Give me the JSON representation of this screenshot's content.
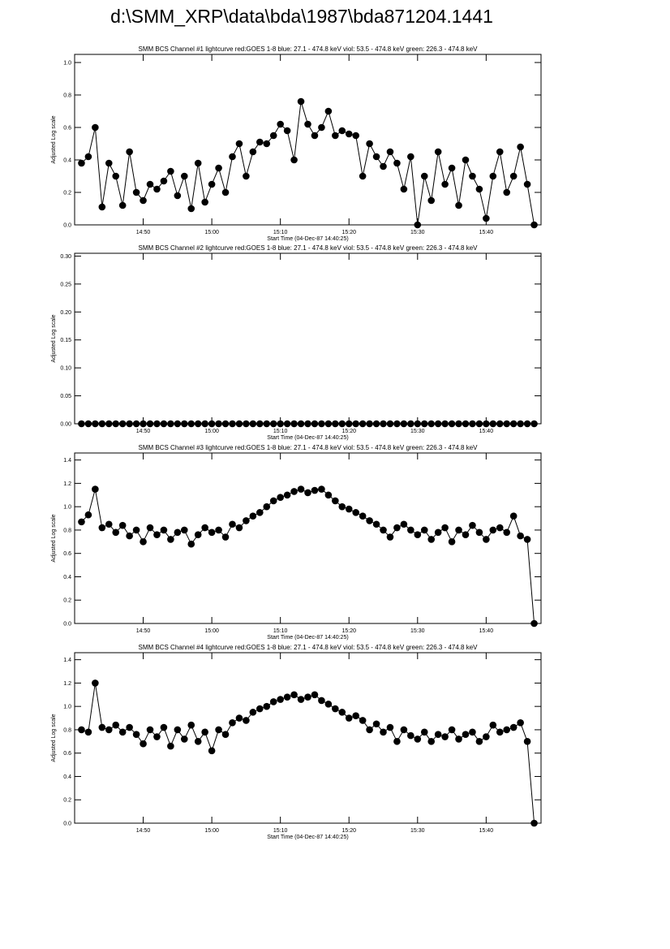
{
  "title": "d:\\SMM_XRP\\data\\bda\\1987\\bda871204.1441",
  "chart_data": [
    {
      "type": "line",
      "title": "SMM BCS Channel #1 lightcurve  red:GOES 1-8  blue: 27.1 - 474.8 keV  viol: 53.5 - 474.8 keV  green: 226.3 - 474.8 keV",
      "y_label": "Adjusted Log scale",
      "x_label": "Start Time (04-Dec-87 14:40:25)",
      "color": "#000000",
      "xlim": [
        "14:40",
        "15:48"
      ],
      "xticks": [
        "14:50",
        "15:00",
        "15:10",
        "15:20",
        "15:30",
        "15:40"
      ],
      "ylim": [
        0,
        1.05
      ],
      "yticks": [
        {
          "value": 0,
          "label": "0.0"
        },
        0.2,
        0.4,
        0.6,
        0.8,
        {
          "value": 1,
          "label": "1.0"
        }
      ],
      "x": [
        "14:41",
        "14:42",
        "14:43",
        "14:44",
        "14:45",
        "14:46",
        "14:47",
        "14:48",
        "14:49",
        "14:50",
        "14:51",
        "14:52",
        "14:53",
        "14:54",
        "14:55",
        "14:56",
        "14:57",
        "14:58",
        "14:59",
        "15:00",
        "15:01",
        "15:02",
        "15:03",
        "15:04",
        "15:05",
        "15:06",
        "15:07",
        "15:08",
        "15:09",
        "15:10",
        "15:11",
        "15:12",
        "15:13",
        "15:14",
        "15:15",
        "15:16",
        "15:17",
        "15:18",
        "15:19",
        "15:20",
        "15:21",
        "15:22",
        "15:23",
        "15:24",
        "15:25",
        "15:26",
        "15:27",
        "15:28",
        "15:29",
        "15:30",
        "15:31",
        "15:32",
        "15:33",
        "15:34",
        "15:35",
        "15:36",
        "15:37",
        "15:38",
        "15:39",
        "15:40",
        "15:41",
        "15:42",
        "15:43",
        "15:44",
        "15:45",
        "15:46",
        "15:47"
      ],
      "values": [
        0.38,
        0.42,
        0.6,
        0.11,
        0.38,
        0.3,
        0.12,
        0.45,
        0.2,
        0.15,
        0.25,
        0.22,
        0.27,
        0.33,
        0.18,
        0.3,
        0.1,
        0.38,
        0.14,
        0.25,
        0.35,
        0.2,
        0.42,
        0.5,
        0.3,
        0.45,
        0.51,
        0.5,
        0.55,
        0.62,
        0.58,
        0.4,
        0.76,
        0.62,
        0.55,
        0.6,
        0.7,
        0.55,
        0.58,
        0.56,
        0.55,
        0.3,
        0.5,
        0.42,
        0.36,
        0.45,
        0.38,
        0.22,
        0.42,
        0,
        0.3,
        0.15,
        0.45,
        0.25,
        0.35,
        0.12,
        0.4,
        0.3,
        0.22,
        0.04,
        0.3,
        0.45,
        0.2,
        0.3,
        0.48,
        0.25,
        0
      ]
    },
    {
      "type": "line",
      "title": "SMM BCS Channel #2 lightcurve  red:GOES 1-8  blue: 27.1 - 474.8 keV  viol: 53.5 - 474.8 keV  green: 226.3 - 474.8 keV",
      "y_label": "Adjusted Log scale",
      "x_label": "Start Time (04-Dec-87 14:40:25)",
      "color": "#000000",
      "xlim": [
        "14:40",
        "15:48"
      ],
      "xticks": [
        "14:50",
        "15:00",
        "15:10",
        "15:20",
        "15:30",
        "15:40"
      ],
      "ylim": [
        0,
        0.305
      ],
      "yticks": [
        {
          "value": 0,
          "label": "0.00"
        },
        0.05,
        {
          "value": 0.1,
          "label": "0.10"
        },
        0.15,
        {
          "value": 0.2,
          "label": "0.20"
        },
        0.25,
        {
          "value": 0.3,
          "label": "0.30"
        }
      ],
      "x": [
        "14:41",
        "14:42",
        "14:43",
        "14:44",
        "14:45",
        "14:46",
        "14:47",
        "14:48",
        "14:49",
        "14:50",
        "14:51",
        "14:52",
        "14:53",
        "14:54",
        "14:55",
        "14:56",
        "14:57",
        "14:58",
        "14:59",
        "15:00",
        "15:01",
        "15:02",
        "15:03",
        "15:04",
        "15:05",
        "15:06",
        "15:07",
        "15:08",
        "15:09",
        "15:10",
        "15:11",
        "15:12",
        "15:13",
        "15:14",
        "15:15",
        "15:16",
        "15:17",
        "15:18",
        "15:19",
        "15:20",
        "15:21",
        "15:22",
        "15:23",
        "15:24",
        "15:25",
        "15:26",
        "15:27",
        "15:28",
        "15:29",
        "15:30",
        "15:31",
        "15:32",
        "15:33",
        "15:34",
        "15:35",
        "15:36",
        "15:37",
        "15:38",
        "15:39",
        "15:40",
        "15:41",
        "15:42",
        "15:43",
        "15:44",
        "15:45",
        "15:46",
        "15:47"
      ],
      "values": [
        0,
        0,
        0,
        0,
        0,
        0,
        0,
        0,
        0,
        0,
        0,
        0,
        0,
        0,
        0,
        0,
        0,
        0,
        0,
        0,
        0,
        0,
        0,
        0,
        0,
        0,
        0,
        0,
        0,
        0,
        0,
        0,
        0,
        0,
        0,
        0,
        0,
        0,
        0,
        0,
        0,
        0,
        0,
        0,
        0,
        0,
        0,
        0,
        0,
        0,
        0,
        0,
        0,
        0,
        0,
        0,
        0,
        0,
        0,
        0,
        0,
        0,
        0,
        0,
        0,
        0,
        0
      ]
    },
    {
      "type": "line",
      "title": "SMM BCS Channel #3 lightcurve  red:GOES 1-8  blue: 27.1 - 474.8 keV  viol: 53.5 - 474.8 keV  green: 226.3 - 474.8 keV",
      "y_label": "Adjusted Log scale",
      "x_label": "Start Time (04-Dec-87 14:40:25)",
      "color": "#000000",
      "xlim": [
        "14:40",
        "15:48"
      ],
      "xticks": [
        "14:50",
        "15:00",
        "15:10",
        "15:20",
        "15:30",
        "15:40"
      ],
      "ylim": [
        0,
        1.46
      ],
      "yticks": [
        {
          "value": 0,
          "label": "0.0"
        },
        0.2,
        0.4,
        0.6,
        0.8,
        {
          "value": 1,
          "label": "1.0"
        },
        1.2,
        1.4
      ],
      "x": [
        "14:41",
        "14:42",
        "14:43",
        "14:44",
        "14:45",
        "14:46",
        "14:47",
        "14:48",
        "14:49",
        "14:50",
        "14:51",
        "14:52",
        "14:53",
        "14:54",
        "14:55",
        "14:56",
        "14:57",
        "14:58",
        "14:59",
        "15:00",
        "15:01",
        "15:02",
        "15:03",
        "15:04",
        "15:05",
        "15:06",
        "15:07",
        "15:08",
        "15:09",
        "15:10",
        "15:11",
        "15:12",
        "15:13",
        "15:14",
        "15:15",
        "15:16",
        "15:17",
        "15:18",
        "15:19",
        "15:20",
        "15:21",
        "15:22",
        "15:23",
        "15:24",
        "15:25",
        "15:26",
        "15:27",
        "15:28",
        "15:29",
        "15:30",
        "15:31",
        "15:32",
        "15:33",
        "15:34",
        "15:35",
        "15:36",
        "15:37",
        "15:38",
        "15:39",
        "15:40",
        "15:41",
        "15:42",
        "15:43",
        "15:44",
        "15:45",
        "15:46",
        "15:47"
      ],
      "values": [
        0.87,
        0.93,
        1.15,
        0.82,
        0.85,
        0.78,
        0.84,
        0.75,
        0.8,
        0.7,
        0.82,
        0.76,
        0.8,
        0.72,
        0.78,
        0.8,
        0.68,
        0.76,
        0.82,
        0.78,
        0.8,
        0.74,
        0.85,
        0.82,
        0.88,
        0.92,
        0.95,
        1.0,
        1.05,
        1.08,
        1.1,
        1.13,
        1.15,
        1.12,
        1.14,
        1.15,
        1.1,
        1.05,
        1.0,
        0.98,
        0.95,
        0.92,
        0.88,
        0.85,
        0.8,
        0.74,
        0.82,
        0.85,
        0.8,
        0.76,
        0.8,
        0.72,
        0.78,
        0.82,
        0.7,
        0.8,
        0.76,
        0.84,
        0.78,
        0.72,
        0.8,
        0.82,
        0.78,
        0.92,
        0.75,
        0.72,
        0
      ]
    },
    {
      "type": "line",
      "title": "SMM BCS Channel #4 lightcurve  red:GOES 1-8  blue: 27.1 - 474.8 keV  viol: 53.5 - 474.8 keV  green: 226.3 - 474.8 keV",
      "y_label": "Adjusted Log scale",
      "x_label": "Start Time (04-Dec-87 14:40:25)",
      "color": "#000000",
      "xlim": [
        "14:40",
        "15:48"
      ],
      "xticks": [
        "14:50",
        "15:00",
        "15:10",
        "15:20",
        "15:30",
        "15:40"
      ],
      "ylim": [
        0,
        1.46
      ],
      "yticks": [
        {
          "value": 0,
          "label": "0.0"
        },
        0.2,
        0.4,
        0.6,
        0.8,
        {
          "value": 1,
          "label": "1.0"
        },
        1.2,
        1.4
      ],
      "x": [
        "14:41",
        "14:42",
        "14:43",
        "14:44",
        "14:45",
        "14:46",
        "14:47",
        "14:48",
        "14:49",
        "14:50",
        "14:51",
        "14:52",
        "14:53",
        "14:54",
        "14:55",
        "14:56",
        "14:57",
        "14:58",
        "14:59",
        "15:00",
        "15:01",
        "15:02",
        "15:03",
        "15:04",
        "15:05",
        "15:06",
        "15:07",
        "15:08",
        "15:09",
        "15:10",
        "15:11",
        "15:12",
        "15:13",
        "15:14",
        "15:15",
        "15:16",
        "15:17",
        "15:18",
        "15:19",
        "15:20",
        "15:21",
        "15:22",
        "15:23",
        "15:24",
        "15:25",
        "15:26",
        "15:27",
        "15:28",
        "15:29",
        "15:30",
        "15:31",
        "15:32",
        "15:33",
        "15:34",
        "15:35",
        "15:36",
        "15:37",
        "15:38",
        "15:39",
        "15:40",
        "15:41",
        "15:42",
        "15:43",
        "15:44",
        "15:45",
        "15:46",
        "15:47"
      ],
      "values": [
        0.8,
        0.78,
        1.2,
        0.82,
        0.8,
        0.84,
        0.78,
        0.82,
        0.76,
        0.68,
        0.8,
        0.74,
        0.82,
        0.66,
        0.8,
        0.72,
        0.84,
        0.7,
        0.78,
        0.62,
        0.8,
        0.76,
        0.86,
        0.9,
        0.88,
        0.95,
        0.98,
        1.0,
        1.04,
        1.06,
        1.08,
        1.1,
        1.06,
        1.08,
        1.1,
        1.05,
        1.02,
        0.98,
        0.95,
        0.9,
        0.92,
        0.88,
        0.8,
        0.85,
        0.78,
        0.82,
        0.7,
        0.8,
        0.75,
        0.72,
        0.78,
        0.7,
        0.76,
        0.74,
        0.8,
        0.72,
        0.76,
        0.78,
        0.7,
        0.74,
        0.84,
        0.78,
        0.8,
        0.82,
        0.86,
        0.7,
        0
      ]
    }
  ]
}
